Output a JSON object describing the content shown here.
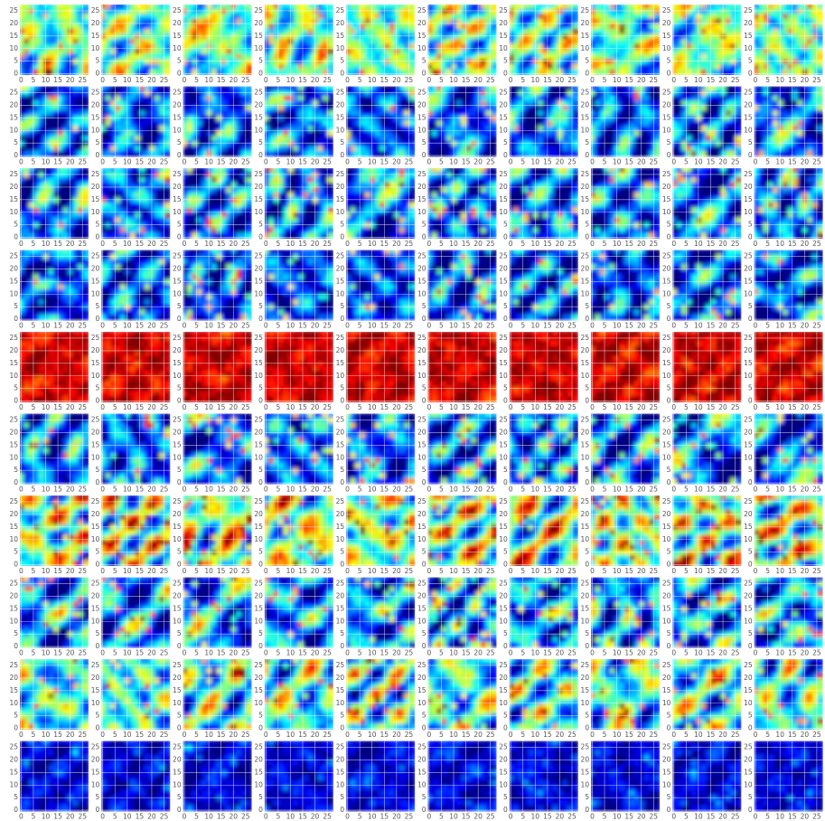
{
  "chart_data": {
    "type": "heatmap-grid",
    "rows": 10,
    "cols": 10,
    "xlim": [
      -0.5,
      27.5
    ],
    "ylim": [
      27.5,
      -0.5
    ],
    "xticks": [
      0,
      5,
      10,
      15,
      20,
      25
    ],
    "yticks": [
      0,
      5,
      10,
      15,
      20,
      25
    ],
    "grid": true,
    "grid_color": "#ffffff"
  }
}
